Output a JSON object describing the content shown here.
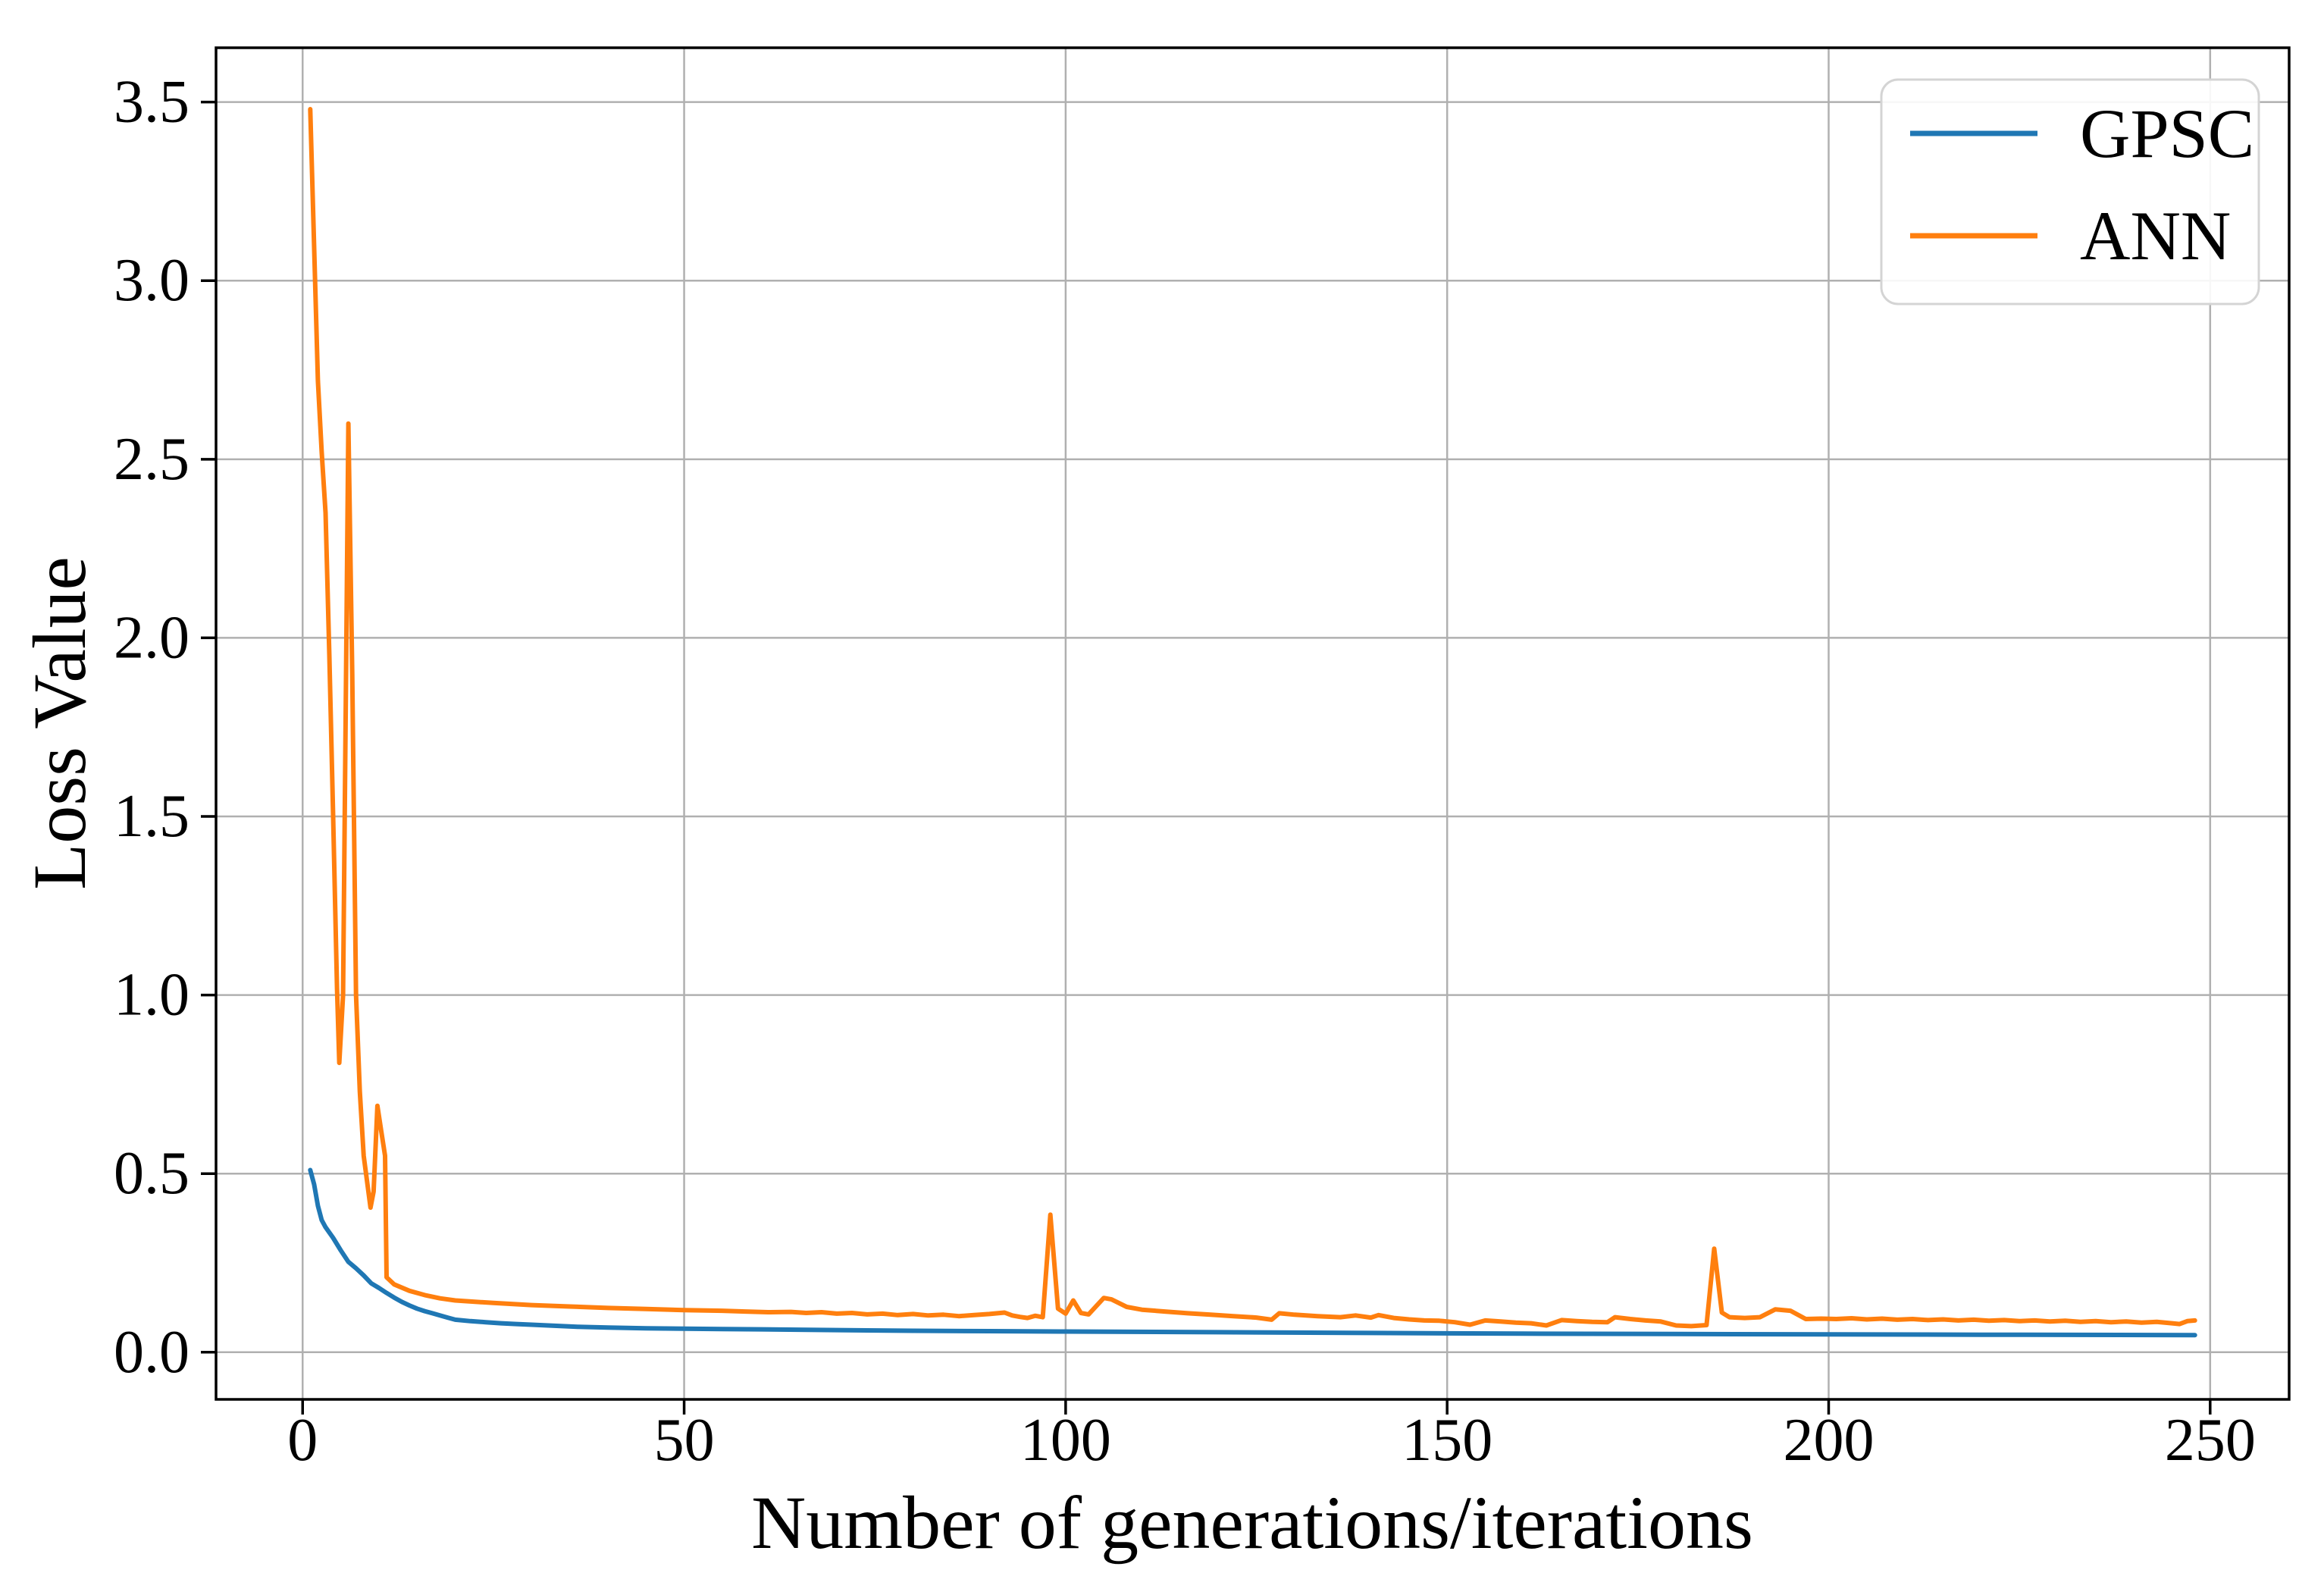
{
  "chart_data": {
    "type": "line",
    "title": "",
    "xlabel": "Number of generations/iterations",
    "ylabel": "Loss Value",
    "xlim": [
      -11.35,
      260.35
    ],
    "ylim": [
      -0.132,
      3.652
    ],
    "xticks": [
      0,
      50,
      100,
      150,
      200,
      250
    ],
    "yticks": [
      0.0,
      0.5,
      1.0,
      1.5,
      2.0,
      2.5,
      3.0,
      3.5
    ],
    "grid": true,
    "background": "#ffffff",
    "grid_color": "#b0b0b0",
    "frame_color": "#000000",
    "legend": {
      "position": "upper right",
      "entries": [
        {
          "label": "GPSC",
          "color": "#1f77b4"
        },
        {
          "label": "ANN",
          "color": "#ff7f0e"
        }
      ]
    },
    "series": [
      {
        "name": "GPSC",
        "color": "#1f77b4",
        "points": [
          [
            1,
            0.51
          ],
          [
            1.5,
            0.47
          ],
          [
            2,
            0.41
          ],
          [
            2.5,
            0.37
          ],
          [
            3,
            0.35
          ],
          [
            4,
            0.32
          ],
          [
            5,
            0.285
          ],
          [
            6,
            0.253
          ],
          [
            7,
            0.235
          ],
          [
            8,
            0.215
          ],
          [
            9,
            0.193
          ],
          [
            10,
            0.18
          ],
          [
            11,
            0.166
          ],
          [
            12,
            0.153
          ],
          [
            13,
            0.141
          ],
          [
            14,
            0.131
          ],
          [
            15,
            0.122
          ],
          [
            16,
            0.115
          ],
          [
            17,
            0.109
          ],
          [
            18,
            0.103
          ],
          [
            19,
            0.097
          ],
          [
            20,
            0.091
          ],
          [
            22,
            0.087
          ],
          [
            24,
            0.084
          ],
          [
            26,
            0.081
          ],
          [
            28,
            0.079
          ],
          [
            30,
            0.077
          ],
          [
            33,
            0.074
          ],
          [
            36,
            0.071
          ],
          [
            40,
            0.069
          ],
          [
            45,
            0.067
          ],
          [
            50,
            0.066
          ],
          [
            55,
            0.065
          ],
          [
            60,
            0.064
          ],
          [
            70,
            0.062
          ],
          [
            80,
            0.06
          ],
          [
            90,
            0.059
          ],
          [
            100,
            0.058
          ],
          [
            120,
            0.056
          ],
          [
            140,
            0.054
          ],
          [
            160,
            0.052
          ],
          [
            180,
            0.051
          ],
          [
            200,
            0.05
          ],
          [
            220,
            0.049
          ],
          [
            248,
            0.048
          ]
        ]
      },
      {
        "name": "ANN",
        "color": "#ff7f0e",
        "points": [
          [
            1,
            3.48
          ],
          [
            2,
            2.72
          ],
          [
            2.5,
            2.52
          ],
          [
            3,
            2.35
          ],
          [
            3.5,
            1.95
          ],
          [
            4,
            1.5
          ],
          [
            4.5,
            1.02
          ],
          [
            4.8,
            0.81
          ],
          [
            5.3,
            1.0
          ],
          [
            6,
            2.6
          ],
          [
            6.5,
            1.9
          ],
          [
            7,
            1.0
          ],
          [
            7.5,
            0.73
          ],
          [
            8,
            0.55
          ],
          [
            8.9,
            0.405
          ],
          [
            9.3,
            0.45
          ],
          [
            9.8,
            0.69
          ],
          [
            10.3,
            0.62
          ],
          [
            10.8,
            0.55
          ],
          [
            11,
            0.21
          ],
          [
            12,
            0.19
          ],
          [
            14,
            0.172
          ],
          [
            16,
            0.16
          ],
          [
            18,
            0.151
          ],
          [
            20,
            0.145
          ],
          [
            25,
            0.138
          ],
          [
            30,
            0.132
          ],
          [
            35,
            0.128
          ],
          [
            40,
            0.124
          ],
          [
            45,
            0.121
          ],
          [
            50,
            0.118
          ],
          [
            55,
            0.116
          ],
          [
            58,
            0.114
          ],
          [
            61,
            0.112
          ],
          [
            64,
            0.113
          ],
          [
            66,
            0.11
          ],
          [
            68,
            0.112
          ],
          [
            70,
            0.108
          ],
          [
            72,
            0.11
          ],
          [
            74,
            0.106
          ],
          [
            76,
            0.108
          ],
          [
            78,
            0.104
          ],
          [
            80,
            0.107
          ],
          [
            82,
            0.103
          ],
          [
            84,
            0.105
          ],
          [
            86,
            0.101
          ],
          [
            88,
            0.104
          ],
          [
            90,
            0.107
          ],
          [
            92,
            0.111
          ],
          [
            93,
            0.103
          ],
          [
            94,
            0.099
          ],
          [
            95,
            0.096
          ],
          [
            96,
            0.102
          ],
          [
            97,
            0.098
          ],
          [
            98,
            0.385
          ],
          [
            99,
            0.122
          ],
          [
            100,
            0.108
          ],
          [
            101,
            0.145
          ],
          [
            102,
            0.11
          ],
          [
            103,
            0.106
          ],
          [
            105,
            0.152
          ],
          [
            106,
            0.148
          ],
          [
            108,
            0.127
          ],
          [
            110,
            0.119
          ],
          [
            113,
            0.114
          ],
          [
            116,
            0.109
          ],
          [
            119,
            0.105
          ],
          [
            122,
            0.101
          ],
          [
            125,
            0.097
          ],
          [
            127,
            0.091
          ],
          [
            128,
            0.109
          ],
          [
            130,
            0.105
          ],
          [
            133,
            0.101
          ],
          [
            136,
            0.098
          ],
          [
            138,
            0.103
          ],
          [
            140,
            0.097
          ],
          [
            141,
            0.104
          ],
          [
            143,
            0.096
          ],
          [
            145,
            0.092
          ],
          [
            147,
            0.089
          ],
          [
            149,
            0.088
          ],
          [
            151,
            0.084
          ],
          [
            153,
            0.077
          ],
          [
            155,
            0.089
          ],
          [
            157,
            0.086
          ],
          [
            159,
            0.083
          ],
          [
            161,
            0.081
          ],
          [
            163,
            0.075
          ],
          [
            165,
            0.09
          ],
          [
            167,
            0.087
          ],
          [
            169,
            0.085
          ],
          [
            171,
            0.084
          ],
          [
            172,
            0.098
          ],
          [
            174,
            0.093
          ],
          [
            176,
            0.089
          ],
          [
            178,
            0.086
          ],
          [
            180,
            0.075
          ],
          [
            182,
            0.073
          ],
          [
            184,
            0.076
          ],
          [
            185,
            0.29
          ],
          [
            186,
            0.111
          ],
          [
            187,
            0.098
          ],
          [
            189,
            0.096
          ],
          [
            191,
            0.098
          ],
          [
            193,
            0.12
          ],
          [
            195,
            0.116
          ],
          [
            197,
            0.093
          ],
          [
            199,
            0.094
          ],
          [
            201,
            0.093
          ],
          [
            203,
            0.095
          ],
          [
            205,
            0.092
          ],
          [
            207,
            0.094
          ],
          [
            209,
            0.091
          ],
          [
            211,
            0.093
          ],
          [
            213,
            0.09
          ],
          [
            215,
            0.092
          ],
          [
            217,
            0.089
          ],
          [
            219,
            0.091
          ],
          [
            221,
            0.088
          ],
          [
            223,
            0.09
          ],
          [
            225,
            0.087
          ],
          [
            227,
            0.089
          ],
          [
            229,
            0.086
          ],
          [
            231,
            0.088
          ],
          [
            233,
            0.085
          ],
          [
            235,
            0.087
          ],
          [
            237,
            0.084
          ],
          [
            239,
            0.086
          ],
          [
            241,
            0.083
          ],
          [
            243,
            0.085
          ],
          [
            245,
            0.081
          ],
          [
            246,
            0.079
          ],
          [
            247,
            0.087
          ],
          [
            248,
            0.089
          ]
        ]
      }
    ]
  }
}
